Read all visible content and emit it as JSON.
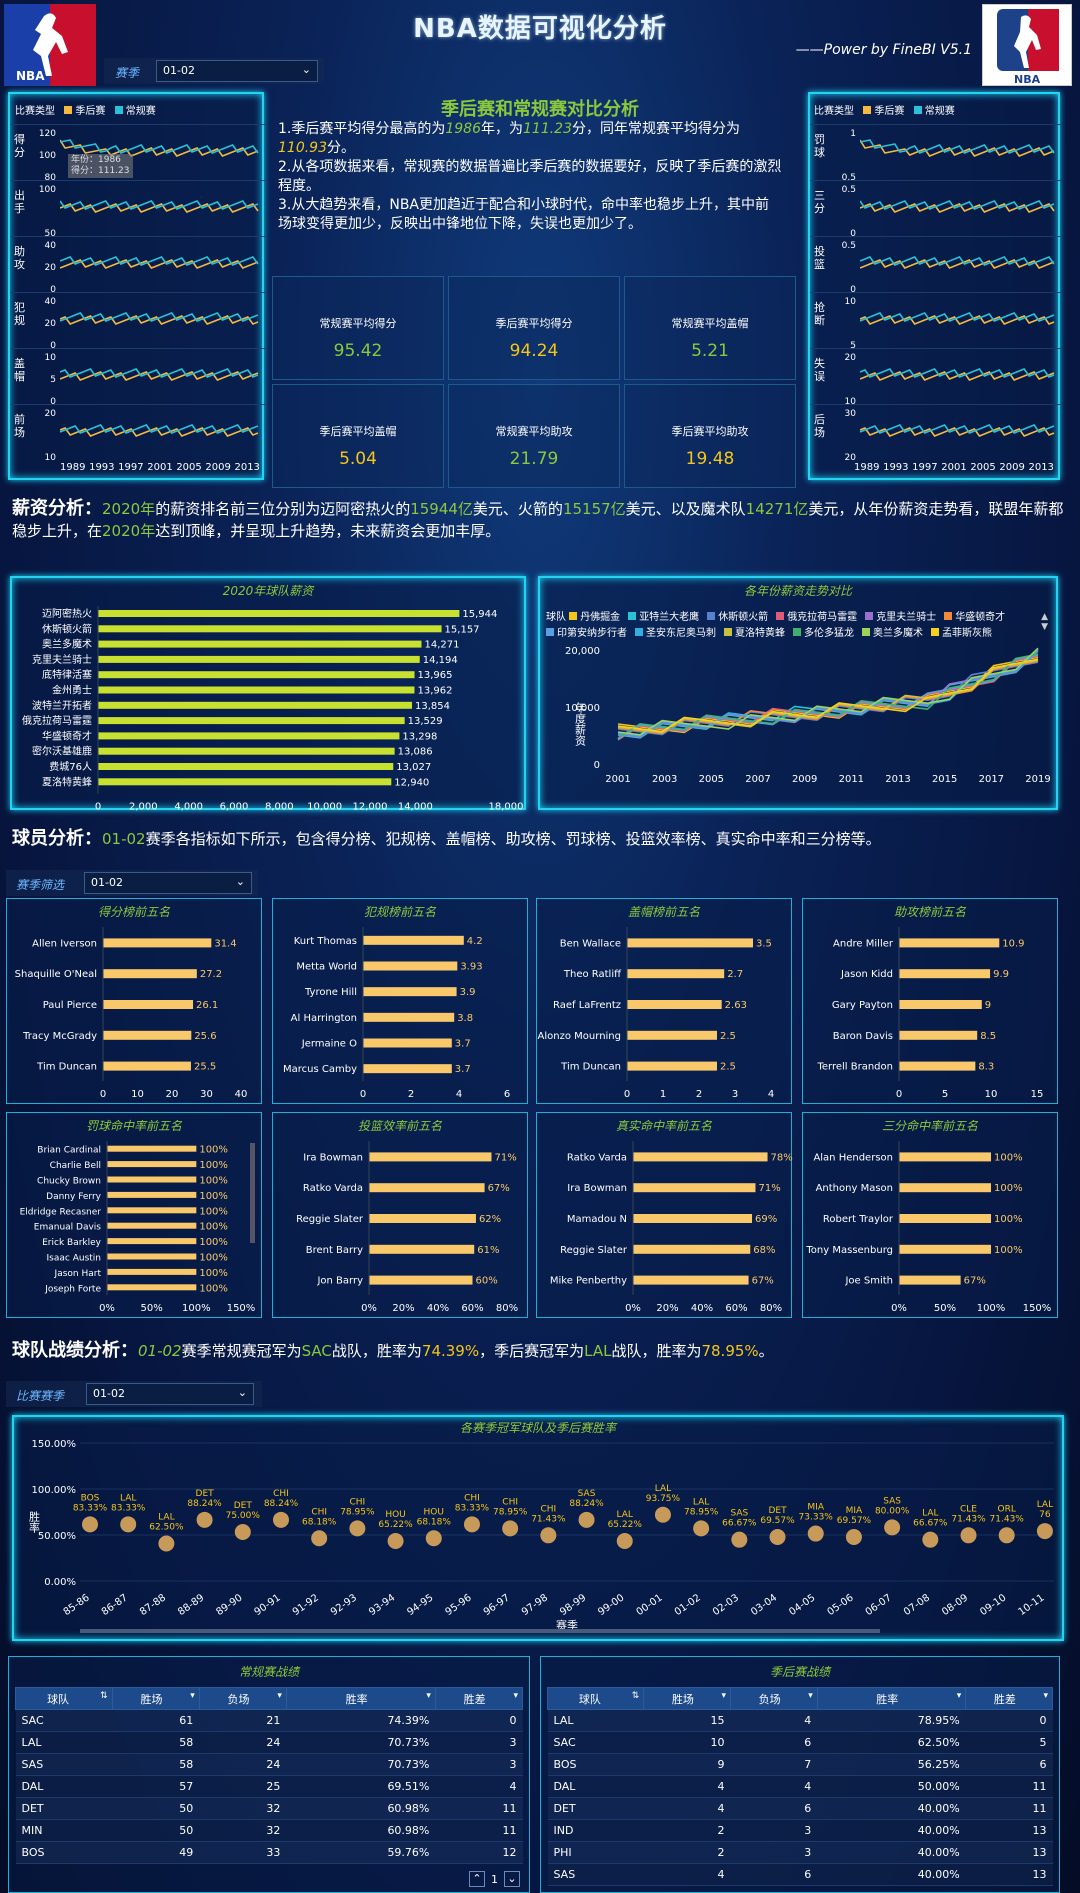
{
  "header": {
    "title": "NBA数据可视化分析",
    "subtitle": "——Power by FineBI V5.1",
    "season_label": "赛季",
    "season_value": "01-02"
  },
  "compare": {
    "title": "季后赛和常规赛对比分析",
    "legend_label": "比赛类型",
    "legend_playoff": "季后赛",
    "legend_regular": "常规赛",
    "text": [
      {
        "s": "1.季后赛平均得分最高的为",
        "k": "n"
      },
      {
        "s": "1986",
        "k": "g"
      },
      {
        "s": "年，为",
        "k": "n"
      },
      {
        "s": "111.23",
        "k": "g"
      },
      {
        "s": "分，同年常规赛平均得分为",
        "k": "n"
      },
      {
        "s": "110.93",
        "k": "y"
      },
      {
        "s": "分。\n2.从各项数据来看，常规赛的数据普遍比季后赛的数据要好，反映了季后赛的激烈程度。\n3.从大趋势来看，NBA更加趋近于配合和小球时代，命中率也稳步上升，其中前场球变得更加少，反映出中锋地位下降，失误也更加少了。",
        "k": "n"
      }
    ],
    "left_rows": [
      {
        "label": "得分",
        "ticks": [
          "120",
          "100",
          "80"
        ]
      },
      {
        "label": "出手",
        "ticks": [
          "100",
          "50"
        ]
      },
      {
        "label": "助攻",
        "ticks": [
          "40",
          "20",
          "0"
        ]
      },
      {
        "label": "犯规",
        "ticks": [
          "40",
          "20",
          "0"
        ]
      },
      {
        "label": "盖帽",
        "ticks": [
          "10",
          "5",
          "0"
        ]
      },
      {
        "label": "前场",
        "ticks": [
          "20",
          "10"
        ]
      }
    ],
    "right_rows": [
      {
        "label": "罚球",
        "ticks": [
          "1",
          "0.5"
        ]
      },
      {
        "label": "三分",
        "ticks": [
          "0.5",
          "0"
        ]
      },
      {
        "label": "投篮",
        "ticks": [
          "0.5",
          "0"
        ]
      },
      {
        "label": "抢断",
        "ticks": [
          "10",
          "5"
        ]
      },
      {
        "label": "失误",
        "ticks": [
          "20",
          "10"
        ]
      },
      {
        "label": "后场",
        "ticks": [
          "30",
          "20"
        ]
      }
    ],
    "xticks": [
      "1989",
      "1993",
      "1997",
      "2001",
      "2005",
      "2009",
      "2013"
    ],
    "tooltip": {
      "year": "年份：1986",
      "score": "得分：111.23"
    },
    "kpis": [
      {
        "t": "常规赛平均得分",
        "v": "95.42",
        "c": "#8cc83c"
      },
      {
        "t": "季后赛平均得分",
        "v": "94.24",
        "c": "#f5c518"
      },
      {
        "t": "常规赛平均盖帽",
        "v": "5.21",
        "c": "#8cc83c"
      },
      {
        "t": "季后赛平均盖帽",
        "v": "5.04",
        "c": "#f5c518"
      },
      {
        "t": "常规赛平均助攻",
        "v": "21.79",
        "c": "#8cc83c"
      },
      {
        "t": "季后赛平均助攻",
        "v": "19.48",
        "c": "#f5c518"
      }
    ]
  },
  "salary": {
    "heading": "薪资分析：",
    "text": [
      {
        "s": "2020年",
        "k": "g"
      },
      {
        "s": "的薪资排名前三位分别为迈阿密热火的",
        "k": "n"
      },
      {
        "s": "15944亿",
        "k": "g"
      },
      {
        "s": "美元、火箭的",
        "k": "n"
      },
      {
        "s": "15157亿",
        "k": "g"
      },
      {
        "s": "美元、以及魔术队",
        "k": "n"
      },
      {
        "s": "14271亿",
        "k": "g"
      },
      {
        "s": "美元，从年份薪资走势看，联盟年薪都稳步上升，在",
        "k": "n"
      },
      {
        "s": "2020年",
        "k": "g"
      },
      {
        "s": "达到顶峰，并呈现上升趋势，未来薪资会更加丰厚。",
        "k": "n"
      }
    ],
    "bar_title": "2020年球队薪资",
    "line_title": "各年份薪资走势对比",
    "line_ylabel": "年度薪资",
    "legend_label": "球队",
    "legend": [
      {
        "n": "丹佛掘金",
        "c": "#f5c518"
      },
      {
        "n": "亚特兰大老鹰",
        "c": "#29c1d6"
      },
      {
        "n": "休斯顿火箭",
        "c": "#5b7fd0"
      },
      {
        "n": "俄克拉荷马雷霆",
        "c": "#e05a7a"
      },
      {
        "n": "克里夫兰骑士",
        "c": "#9b6fd0"
      },
      {
        "n": "华盛顿奇才",
        "c": "#f08a3a"
      },
      {
        "n": "印第安纳步行者",
        "c": "#5aa0e0"
      },
      {
        "n": "圣安东尼奥马刺",
        "c": "#2fb0e0"
      },
      {
        "n": "夏洛特黄蜂",
        "c": "#c8c040"
      },
      {
        "n": "多伦多猛龙",
        "c": "#40b070"
      },
      {
        "n": "奥兰多魔术",
        "c": "#a0d060"
      },
      {
        "n": "孟菲斯灰熊",
        "c": "#f5d020"
      }
    ],
    "line_xticks": [
      "2001",
      "2003",
      "2005",
      "2007",
      "2009",
      "2011",
      "2013",
      "2015",
      "2017",
      "2019"
    ],
    "line_yticks": [
      "20,000",
      "10,000",
      "0"
    ]
  },
  "player": {
    "heading": "球员分析：",
    "text": [
      {
        "s": "01-02",
        "k": "g"
      },
      {
        "s": "赛季各指标如下所示，包含得分榜、犯规榜、盖帽榜、助攻榜、罚球榜、投篮效率榜、真实命中率和三分榜等。",
        "k": "n"
      }
    ],
    "filter_label": "赛季筛选",
    "filter_value": "01-02"
  },
  "team": {
    "heading": "球队战绩分析：",
    "text": [
      {
        "s": "01-02",
        "k": "gi"
      },
      {
        "s": "赛季常规赛冠军为",
        "k": "n"
      },
      {
        "s": "SAC",
        "k": "g"
      },
      {
        "s": "战队，胜率为",
        "k": "n"
      },
      {
        "s": "74.39%",
        "k": "y"
      },
      {
        "s": "，季后赛冠军为",
        "k": "n"
      },
      {
        "s": "LAL",
        "k": "g"
      },
      {
        "s": "战队，胜率为",
        "k": "n"
      },
      {
        "s": "78.95%",
        "k": "y"
      },
      {
        "s": "。",
        "k": "n"
      }
    ],
    "filter_label": "比赛赛季",
    "filter_value": "01-02",
    "champ_title": "各赛季冠军球队及季后赛胜率",
    "champ_ylabel": "胜率",
    "champ_xlabel": "赛季",
    "champ_yticks": [
      "150.00%",
      "100.00%",
      "50.00%",
      "0.00%"
    ]
  },
  "tables": {
    "regular_title": "常规赛战绩",
    "playoff_title": "季后赛战绩",
    "headers": [
      "球队",
      "胜场",
      "负场",
      "胜率",
      "胜差"
    ],
    "regular": [
      [
        "SAC",
        "61",
        "21",
        "74.39%",
        "0"
      ],
      [
        "LAL",
        "58",
        "24",
        "70.73%",
        "3"
      ],
      [
        "SAS",
        "58",
        "24",
        "70.73%",
        "3"
      ],
      [
        "DAL",
        "57",
        "25",
        "69.51%",
        "4"
      ],
      [
        "DET",
        "50",
        "32",
        "60.98%",
        "11"
      ],
      [
        "MIN",
        "50",
        "32",
        "60.98%",
        "11"
      ],
      [
        "BOS",
        "49",
        "33",
        "59.76%",
        "12"
      ]
    ],
    "playoff": [
      [
        "LAL",
        "15",
        "4",
        "78.95%",
        "0"
      ],
      [
        "SAC",
        "10",
        "6",
        "62.50%",
        "5"
      ],
      [
        "BOS",
        "9",
        "7",
        "56.25%",
        "6"
      ],
      [
        "DAL",
        "4",
        "4",
        "50.00%",
        "11"
      ],
      [
        "DET",
        "4",
        "6",
        "40.00%",
        "11"
      ],
      [
        "IND",
        "2",
        "3",
        "40.00%",
        "13"
      ],
      [
        "PHI",
        "2",
        "3",
        "40.00%",
        "13"
      ],
      [
        "SAS",
        "4",
        "6",
        "40.00%",
        "13"
      ]
    ],
    "page": "1"
  },
  "chart_data": [
    {
      "type": "bar",
      "title": "2020年球队薪资",
      "categories": [
        "迈阿密热火",
        "休斯顿火箭",
        "奥兰多魔术",
        "克里夫兰骑士",
        "底特律活塞",
        "金州勇士",
        "波特兰开拓者",
        "俄克拉荷马雷霆",
        "华盛顿奇才",
        "密尔沃基雄鹿",
        "费城76人",
        "夏洛特黄蜂"
      ],
      "values": [
        15944,
        15157,
        14271,
        14194,
        13965,
        13962,
        13854,
        13529,
        13298,
        13086,
        13027,
        12940
      ],
      "xticks": [
        "0",
        "2,000",
        "4,000",
        "6,000",
        "8,000",
        "10,000",
        "12,000",
        "14,000",
        "18,000"
      ],
      "xlim": [
        0,
        18000
      ]
    },
    {
      "type": "bar",
      "title": "得分榜前五名",
      "categories": [
        "Allen Iverson",
        "Shaquille O'Neal",
        "Paul Pierce",
        "Tracy McGrady",
        "Tim Duncan"
      ],
      "values": [
        31.4,
        27.2,
        26.1,
        25.6,
        25.5
      ],
      "labels": [
        "31.4",
        "27.2",
        "26.1",
        "25.6",
        "25.5"
      ],
      "xticks": [
        "0",
        "10",
        "20",
        "30",
        "40"
      ],
      "xlim": [
        0,
        40
      ]
    },
    {
      "type": "bar",
      "title": "犯规榜前五名",
      "categories": [
        "Kurt Thomas",
        "Metta World",
        "Tyrone Hill",
        "Al Harrington",
        "Jermaine O",
        "Marcus Camby"
      ],
      "values": [
        4.2,
        3.93,
        3.9,
        3.8,
        3.7,
        3.7
      ],
      "labels": [
        "4.2",
        "3.93",
        "3.9",
        "3.8",
        "3.7",
        "3.7"
      ],
      "xticks": [
        "0",
        "2",
        "4",
        "6"
      ],
      "xlim": [
        0,
        6
      ]
    },
    {
      "type": "bar",
      "title": "盖帽榜前五名",
      "categories": [
        "Ben Wallace",
        "Theo Ratliff",
        "Raef LaFrentz",
        "Alonzo Mourning",
        "Tim Duncan"
      ],
      "values": [
        3.5,
        2.7,
        2.63,
        2.5,
        2.5
      ],
      "labels": [
        "3.5",
        "2.7",
        "2.63",
        "2.5",
        "2.5"
      ],
      "xticks": [
        "0",
        "1",
        "2",
        "3",
        "4"
      ],
      "xlim": [
        0,
        4
      ]
    },
    {
      "type": "bar",
      "title": "助攻榜前五名",
      "categories": [
        "Andre Miller",
        "Jason Kidd",
        "Gary Payton",
        "Baron Davis",
        "Terrell Brandon"
      ],
      "values": [
        10.9,
        9.9,
        9,
        8.5,
        8.3
      ],
      "labels": [
        "10.9",
        "9.9",
        "9",
        "8.5",
        "8.3"
      ],
      "xticks": [
        "0",
        "5",
        "10",
        "15"
      ],
      "xlim": [
        0,
        15
      ]
    },
    {
      "type": "bar",
      "title": "罚球命中率前五名",
      "categories": [
        "Brian Cardinal",
        "Charlie Bell",
        "Chucky Brown",
        "Danny Ferry",
        "Eldridge Recasner",
        "Emanual Davis",
        "Erick Barkley",
        "Isaac Austin",
        "Jason Hart",
        "Joseph Forte"
      ],
      "values": [
        100,
        100,
        100,
        100,
        100,
        100,
        100,
        100,
        100,
        100
      ],
      "labels": [
        "100%",
        "100%",
        "100%",
        "100%",
        "100%",
        "100%",
        "100%",
        "100%",
        "100%",
        "100%"
      ],
      "xticks": [
        "0%",
        "50%",
        "100%",
        "150%"
      ],
      "xlim": [
        0,
        150
      ]
    },
    {
      "type": "bar",
      "title": "投篮效率前五名",
      "categories": [
        "Ira Bowman",
        "Ratko Varda",
        "Reggie Slater",
        "Brent Barry",
        "Jon Barry"
      ],
      "values": [
        71,
        67,
        62,
        61,
        60
      ],
      "labels": [
        "71%",
        "67%",
        "62%",
        "61%",
        "60%"
      ],
      "xticks": [
        "0%",
        "20%",
        "40%",
        "60%",
        "80%"
      ],
      "xlim": [
        0,
        80
      ]
    },
    {
      "type": "bar",
      "title": "真实命中率前五名",
      "categories": [
        "Ratko Varda",
        "Ira Bowman",
        "Mamadou N",
        "Reggie Slater",
        "Mike Penberthy"
      ],
      "values": [
        78,
        71,
        69,
        68,
        67
      ],
      "labels": [
        "78%",
        "71%",
        "69%",
        "68%",
        "67%"
      ],
      "xticks": [
        "0%",
        "20%",
        "40%",
        "60%",
        "80%"
      ],
      "xlim": [
        0,
        80
      ]
    },
    {
      "type": "bar",
      "title": "三分命中率前五名",
      "categories": [
        "Alan Henderson",
        "Anthony Mason",
        "Robert Traylor",
        "Tony Massenburg",
        "Joe Smith"
      ],
      "values": [
        100,
        100,
        100,
        100,
        67
      ],
      "labels": [
        "100%",
        "100%",
        "100%",
        "100%",
        "67%"
      ],
      "xticks": [
        "0%",
        "50%",
        "100%",
        "150%"
      ],
      "xlim": [
        0,
        150
      ]
    },
    {
      "type": "scatter",
      "title": "各赛季冠军球队及季后赛胜率",
      "categories": [
        "85-86",
        "86-87",
        "87-88",
        "88-89",
        "89-90",
        "90-91",
        "91-92",
        "92-93",
        "93-94",
        "94-95",
        "95-96",
        "96-97",
        "97-98",
        "98-99",
        "99-00",
        "00-01",
        "01-02",
        "02-03",
        "03-04",
        "04-05",
        "05-06",
        "06-07",
        "07-08",
        "08-09",
        "09-10",
        "10-11"
      ],
      "teams": [
        "BOS",
        "LAL",
        "LAL",
        "DET",
        "DET",
        "CHI",
        "CHI",
        "CHI",
        "HOU",
        "HOU",
        "CHI",
        "CHI",
        "CHI",
        "SAS",
        "LAL",
        "LAL",
        "LAL",
        "SAS",
        "DET",
        "MIA",
        "MIA",
        "SAS",
        "LAL",
        "CLE",
        "ORL",
        "LAL"
      ],
      "values": [
        83.33,
        83.33,
        62.5,
        88.24,
        75.0,
        88.24,
        68.18,
        78.95,
        65.22,
        68.18,
        83.33,
        78.95,
        71.43,
        88.24,
        65.22,
        93.75,
        78.95,
        66.67,
        69.57,
        73.33,
        69.57,
        80.0,
        66.67,
        71.43,
        71.43,
        76.0
      ],
      "labels": [
        "83.33%",
        "83.33%",
        "62.50%",
        "88.24%",
        "75.00%",
        "88.24%",
        "68.18%",
        "78.95%",
        "65.22%",
        "68.18%",
        "83.33%",
        "78.95%",
        "71.43%",
        "88.24%",
        "65.22%",
        "93.75%",
        "78.95%",
        "66.67%",
        "69.57%",
        "73.33%",
        "69.57%",
        "80.00%",
        "66.67%",
        "71.43%",
        "71.43%",
        "76"
      ],
      "ylim": [
        0,
        150
      ]
    }
  ]
}
